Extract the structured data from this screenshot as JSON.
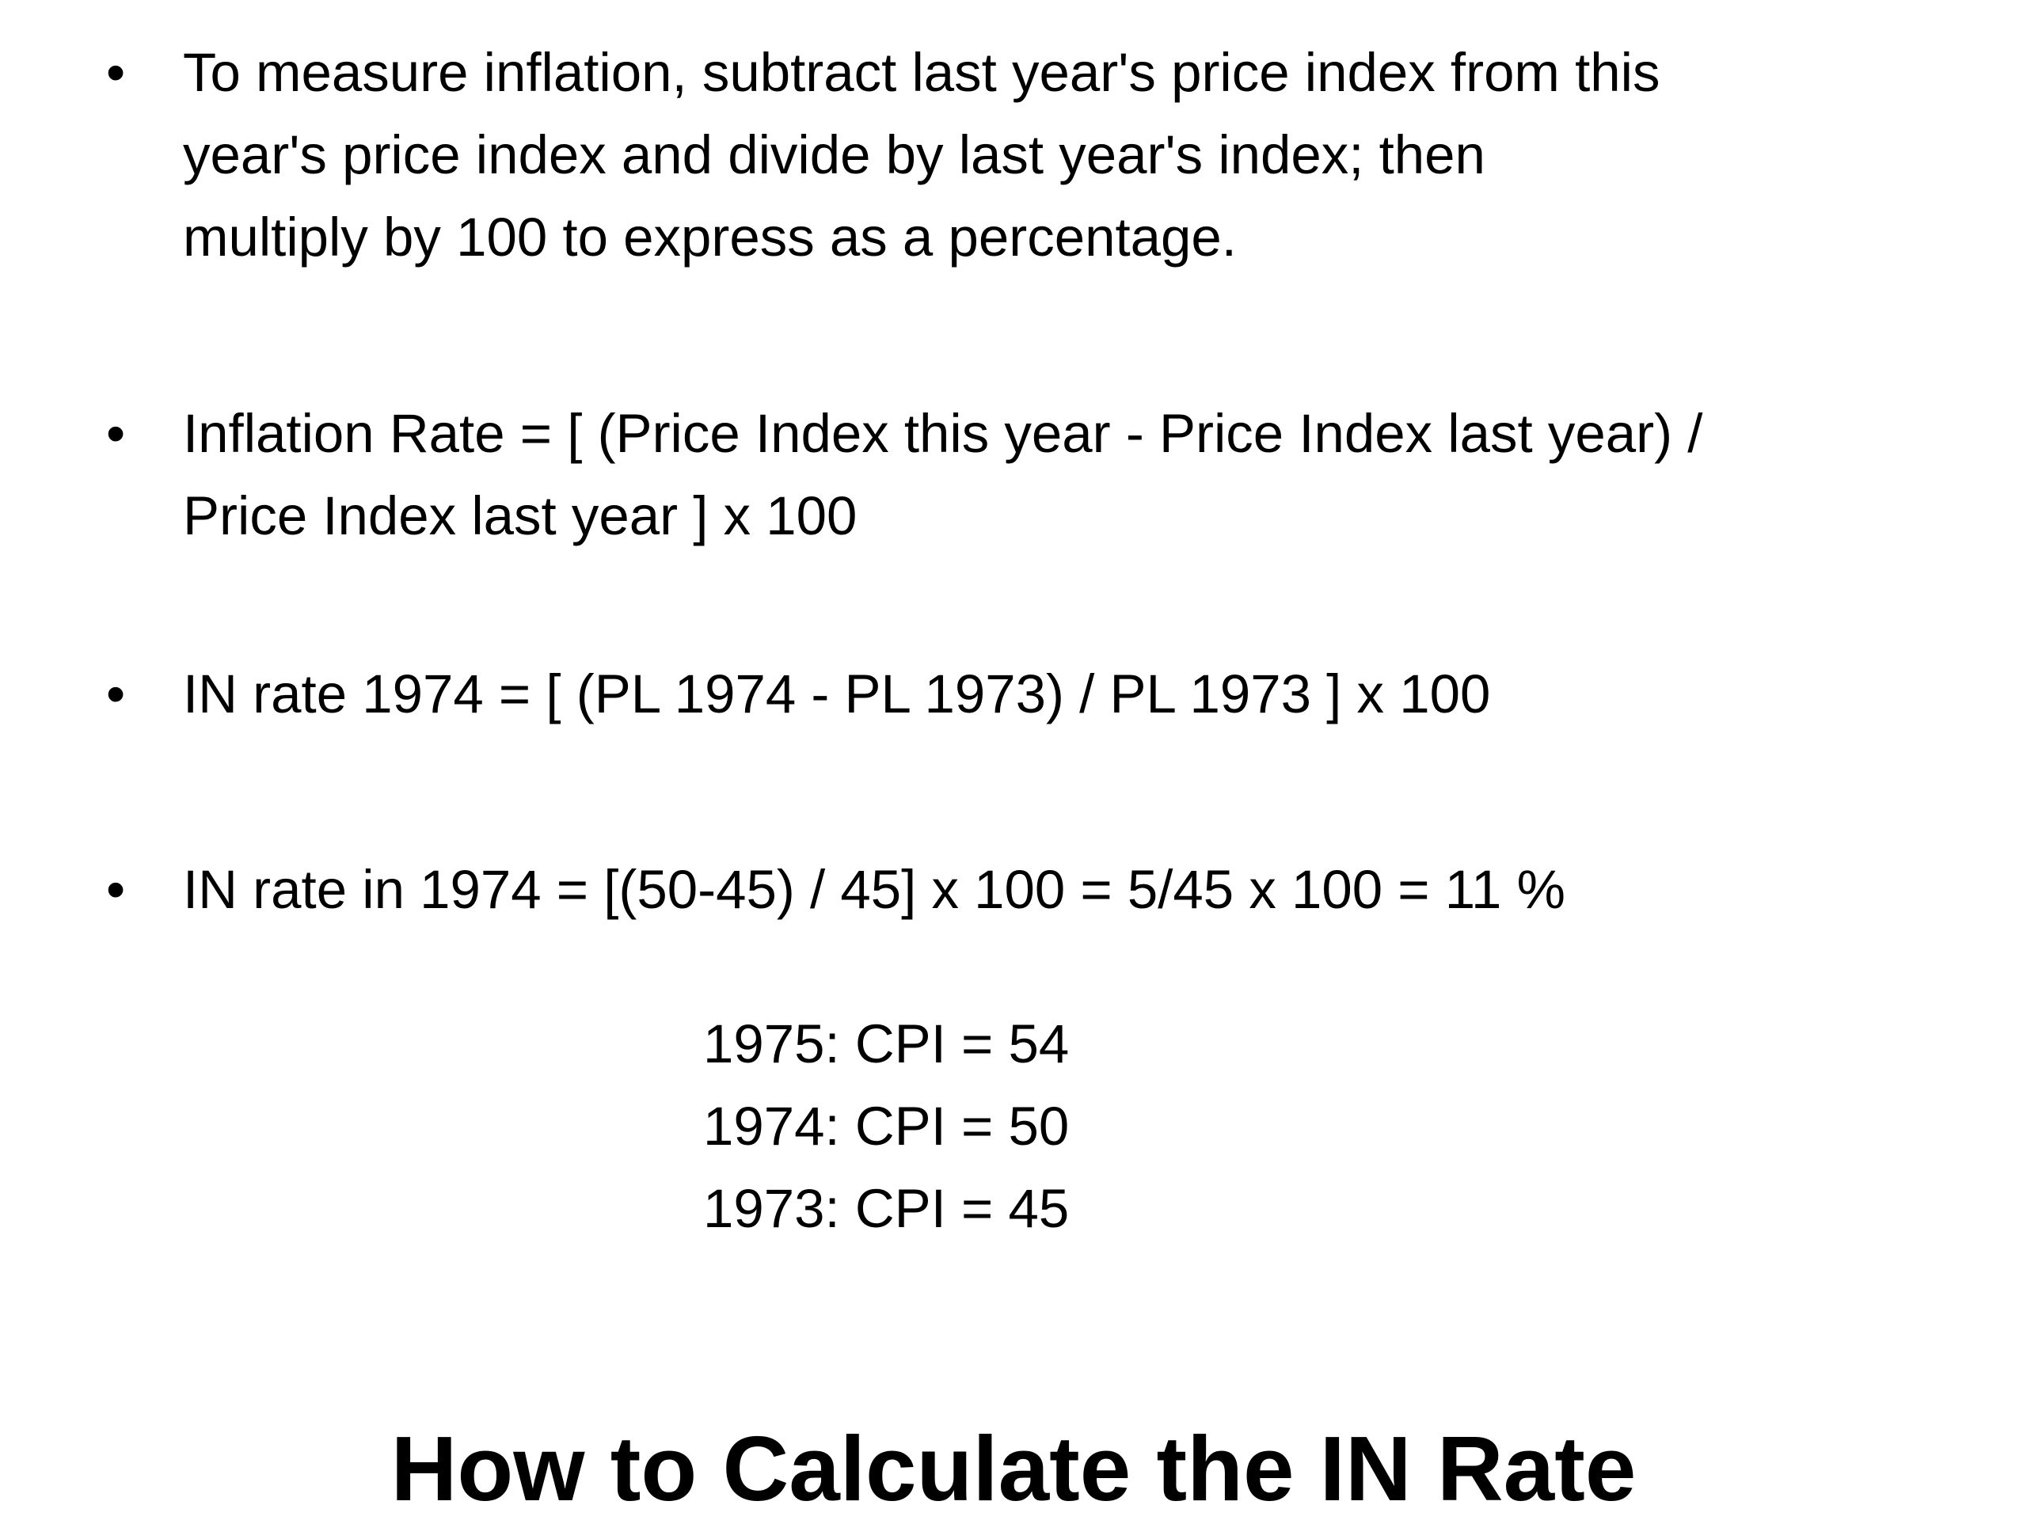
{
  "bullets": [
    {
      "symbol": "•",
      "lines": [
        "To measure inflation, subtract last year's price index from this",
        "year's price index and divide by last year's index; then",
        "multiply by 100 to express as a percentage."
      ]
    },
    {
      "symbol": "•",
      "lines": [
        "Inflation Rate = [ (Price Index this year - Price Index last year) /",
        "Price Index last year ] x 100"
      ]
    },
    {
      "symbol": "•",
      "lines": [
        "IN rate 1974 = [ (PL 1974 - PL 1973) / PL 1973 ] x 100"
      ]
    },
    {
      "symbol": "•",
      "lines": [
        "IN rate in 1974 = [(50-45) / 45] x 100 = 5/45 x 100 = 11 %"
      ]
    }
  ],
  "cpi_table": [
    "1975:  CPI = 54",
    "1974:  CPI = 50",
    "1973:  CPI = 45"
  ],
  "title": "How to Calculate the IN Rate"
}
